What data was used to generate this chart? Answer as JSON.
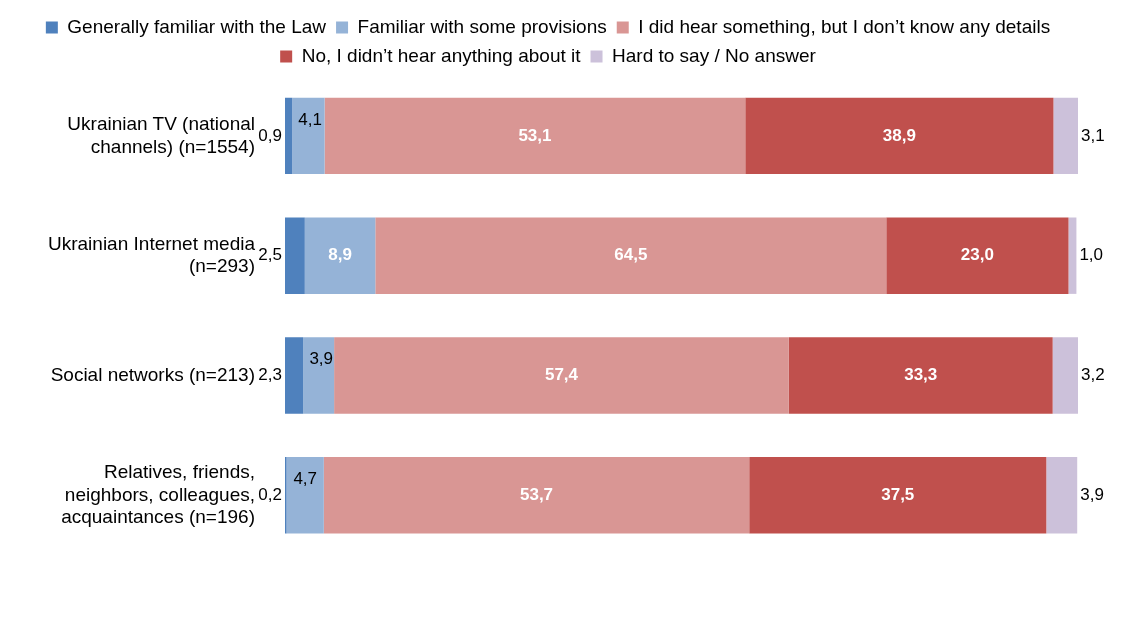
{
  "chart_data": {
    "type": "bar",
    "orientation": "horizontal",
    "stacked": true,
    "legend": "top",
    "grid": false,
    "tick_labels": "y",
    "categories": [
      "Ukrainian TV (national channels) (n=1554)",
      "Ukrainian Internet media (n=293)",
      "Social networks (n=213)",
      "Relatives, friends, neighbors, colleagues, acquaintances (n=196)"
    ],
    "series": [
      {
        "name": "Generally familiar with the Law",
        "color": "#4f81bd",
        "values": [
          0.9,
          2.5,
          2.3,
          0.2
        ],
        "value_labels": [
          "0,9",
          "2,5",
          "2,3",
          "0,2"
        ]
      },
      {
        "name": "Familiar with some provisions",
        "color": "#95b3d7",
        "values": [
          4.1,
          8.9,
          3.9,
          4.7
        ],
        "value_labels": [
          "4,1",
          "8,9",
          "3,9",
          "4,7"
        ]
      },
      {
        "name": "I did hear something, but I don’t know any details",
        "color": "#d99694",
        "values": [
          53.1,
          64.5,
          57.4,
          53.7
        ],
        "value_labels": [
          "53,1",
          "64,5",
          "57,4",
          "53,7"
        ]
      },
      {
        "name": "No, I didn’t hear anything about it",
        "color": "#c0504d",
        "values": [
          38.9,
          23.0,
          33.3,
          37.5
        ],
        "value_labels": [
          "38,9",
          "23,0",
          "33,3",
          "37,5"
        ]
      },
      {
        "name": "Hard to say / No answer",
        "color": "#ccc1da",
        "values": [
          3.1,
          1.0,
          3.2,
          3.9
        ],
        "value_labels": [
          "3,1",
          "1,0",
          "3,2",
          "3,9"
        ]
      }
    ]
  }
}
